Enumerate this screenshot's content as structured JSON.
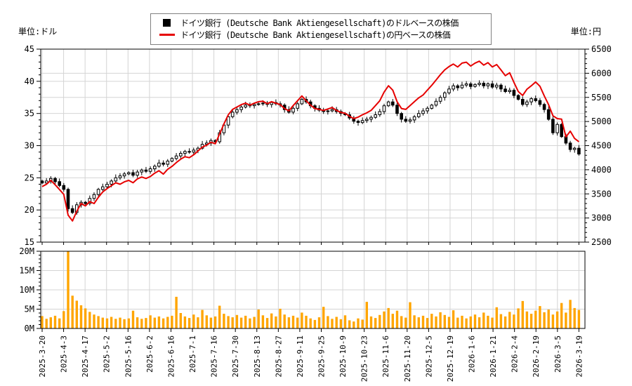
{
  "units": {
    "left": "単位:ドル",
    "right": "単位:円"
  },
  "legend": [
    {
      "swatch": "black-square",
      "color": "#000000",
      "label": "ドイツ銀行 (Deutsche Bank Aktiengesellschaft)のドルベースの株価"
    },
    {
      "swatch": "red-line",
      "color": "#e60000",
      "label": "ドイツ銀行 (Deutsche Bank Aktiengesellschaft)の円ベースの株価"
    }
  ],
  "colors": {
    "candle": "#000000",
    "yen_line": "#e60000",
    "volume_bar": "#ffa500",
    "grid": "#d4d4d4",
    "axis": "#000000",
    "background": "#ffffff"
  },
  "chart_data": {
    "type": "candlestick+line+volume",
    "title": "",
    "x_tick_labels": [
      "2025-3-20",
      "2025-4-3",
      "2025-4-17",
      "2025-5-2",
      "2025-5-16",
      "2025-6-2",
      "2025-6-16",
      "2025-7-1",
      "2025-7-16",
      "2025-7-30",
      "2025-8-13",
      "2025-8-27",
      "2025-9-11",
      "2025-9-25",
      "2025-10-9",
      "2025-10-23",
      "2025-11-6",
      "2025-11-20",
      "2025-12-5",
      "2025-12-19",
      "2026-1-6",
      "2026-1-21",
      "2026-2-4",
      "2026-2-19",
      "2026-3-5",
      "2026-3-19"
    ],
    "points_per_tick": 5,
    "left_axis": {
      "label": "単位:ドル",
      "min": 15,
      "max": 45,
      "major_step": 5,
      "minor_step": 1,
      "ticks": [
        45,
        40,
        35,
        30,
        25,
        20,
        15
      ]
    },
    "right_axis": {
      "label": "単位:円",
      "min": 2500,
      "max": 6500,
      "major_step": 500,
      "minor_step": 100,
      "ticks": [
        6500,
        6000,
        5500,
        5000,
        4500,
        4000,
        3500,
        3000,
        2500
      ]
    },
    "volume_axis": {
      "min": 0,
      "max": 20,
      "major_step": 5,
      "minor_step": 1,
      "tick_labels": [
        "20M",
        "15M",
        "10M",
        "5M",
        "0M"
      ]
    },
    "grid": true,
    "legend_position": "top-center",
    "series": [
      {
        "name": "usd_close_candlesticks",
        "axis": "left",
        "color": "#000000",
        "values": [
          24.2,
          24.5,
          24.9,
          24.4,
          23.8,
          23.2,
          20.2,
          19.6,
          20.8,
          21.2,
          21.0,
          21.8,
          22.4,
          23.2,
          23.6,
          24.0,
          24.5,
          25.0,
          25.3,
          25.6,
          25.8,
          25.4,
          25.9,
          26.2,
          26.0,
          26.4,
          26.8,
          27.3,
          27.1,
          27.6,
          28.0,
          28.4,
          28.8,
          29.1,
          29.0,
          29.3,
          29.6,
          30.2,
          30.4,
          30.8,
          30.6,
          32.0,
          33.2,
          34.5,
          35.2,
          35.6,
          36.0,
          36.3,
          36.2,
          36.4,
          36.5,
          36.6,
          36.4,
          36.7,
          36.5,
          36.3,
          35.6,
          35.2,
          35.8,
          36.5,
          37.2,
          36.8,
          36.2,
          35.8,
          35.5,
          35.3,
          35.4,
          35.6,
          35.3,
          35.0,
          34.8,
          34.3,
          33.8,
          33.6,
          33.9,
          34.1,
          34.4,
          34.8,
          35.3,
          36.2,
          36.8,
          36.3,
          35.0,
          34.1,
          33.8,
          34.0,
          34.5,
          35.0,
          35.4,
          35.8,
          36.3,
          36.9,
          37.5,
          38.2,
          38.8,
          39.3,
          39.0,
          39.4,
          39.6,
          39.2,
          39.5,
          39.7,
          39.3,
          39.6,
          39.1,
          39.4,
          38.8,
          38.4,
          38.6,
          37.8,
          37.2,
          36.4,
          36.8,
          37.3,
          37.0,
          36.4,
          35.6,
          34.1,
          32.0,
          33.3,
          31.4,
          30.4,
          29.4,
          29.6,
          28.7
        ]
      },
      {
        "name": "yen_close_line",
        "axis": "right",
        "color": "#e60000",
        "values": [
          3650,
          3700,
          3780,
          3690,
          3590,
          3490,
          3060,
          2940,
          3140,
          3300,
          3250,
          3340,
          3300,
          3430,
          3540,
          3610,
          3670,
          3730,
          3700,
          3750,
          3780,
          3730,
          3810,
          3850,
          3820,
          3860,
          3930,
          3980,
          3910,
          4010,
          4070,
          4150,
          4220,
          4270,
          4250,
          4310,
          4390,
          4470,
          4510,
          4570,
          4540,
          4740,
          4950,
          5140,
          5250,
          5300,
          5350,
          5380,
          5340,
          5380,
          5410,
          5420,
          5370,
          5410,
          5380,
          5350,
          5270,
          5220,
          5330,
          5430,
          5530,
          5430,
          5340,
          5270,
          5250,
          5230,
          5260,
          5290,
          5230,
          5190,
          5170,
          5110,
          5060,
          5090,
          5140,
          5180,
          5230,
          5330,
          5430,
          5610,
          5740,
          5650,
          5410,
          5270,
          5250,
          5330,
          5410,
          5490,
          5550,
          5650,
          5750,
          5860,
          5970,
          6070,
          6140,
          6190,
          6130,
          6210,
          6230,
          6150,
          6210,
          6250,
          6170,
          6220,
          6130,
          6180,
          6070,
          5950,
          6010,
          5810,
          5620,
          5540,
          5670,
          5740,
          5820,
          5730,
          5530,
          5350,
          5120,
          5060,
          5050,
          4680,
          4800,
          4650,
          4580
        ]
      },
      {
        "name": "volume_millions",
        "axis": "volume",
        "color": "#ffa500",
        "values": [
          3.2,
          2.5,
          2.9,
          3.3,
          2.6,
          4.5,
          20.0,
          8.5,
          7.2,
          6.0,
          5.2,
          4.3,
          3.6,
          3.2,
          2.8,
          2.6,
          3.0,
          2.5,
          2.8,
          2.4,
          2.6,
          4.6,
          2.9,
          2.5,
          2.7,
          3.4,
          2.8,
          3.1,
          2.6,
          3.0,
          3.3,
          8.2,
          4.0,
          3.1,
          2.7,
          3.6,
          2.9,
          4.8,
          3.4,
          2.8,
          3.1,
          5.9,
          3.8,
          3.2,
          2.9,
          3.5,
          2.8,
          3.3,
          2.6,
          3.0,
          4.9,
          3.4,
          2.7,
          3.9,
          3.1,
          5.1,
          3.6,
          2.9,
          3.3,
          2.8,
          4.1,
          3.3,
          2.6,
          2.2,
          2.9,
          5.6,
          3.2,
          2.5,
          3.0,
          2.4,
          3.4,
          2.1,
          1.8,
          2.6,
          2.3,
          6.9,
          3.1,
          2.7,
          3.5,
          4.4,
          5.3,
          3.8,
          4.6,
          3.2,
          2.8,
          6.8,
          3.4,
          2.9,
          3.3,
          2.7,
          3.8,
          3.1,
          4.2,
          3.5,
          3.0,
          4.7,
          2.8,
          3.3,
          2.6,
          3.1,
          3.6,
          2.9,
          4.1,
          3.3,
          2.8,
          5.5,
          3.7,
          3.1,
          4.3,
          3.6,
          5.2,
          7.1,
          4.4,
          3.8,
          4.6,
          5.8,
          4.2,
          4.9,
          3.6,
          4.4,
          6.6,
          4.1,
          7.4,
          5.3,
          4.8
        ]
      }
    ]
  }
}
